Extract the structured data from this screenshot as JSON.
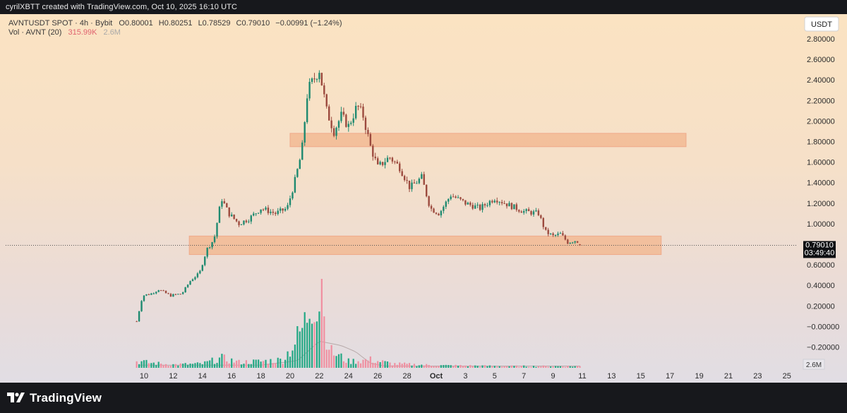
{
  "attribution": "cyrilXBTT created with TradingView.com, Oct 10, 2025 16:10 UTC",
  "brand": "TradingView",
  "legend": {
    "symbol": "AVNTUSDT SPOT · 4h · Bybit",
    "open": "O0.80001",
    "high": "H0.80251",
    "low": "L0.78529",
    "close": "C0.79010",
    "change": "−0.00991 (−1.24%)",
    "vol_label": "Vol · AVNT (20)",
    "vol_value": "315.99K",
    "vol_ma": "2.6M"
  },
  "currency_label": "USDT",
  "price_label": "0.79010",
  "countdown_label": "03:49:40",
  "volume_axis_label": "2.6M",
  "colors": {
    "up": "#1f8a70",
    "down": "#9c4a3e",
    "vol_up": "#22a884",
    "vol_down": "#f08fa0",
    "zone": "#f2b68e",
    "zone_border": "#efa98a",
    "text": "#3a3a3a"
  },
  "chart_data": {
    "type": "candlestick",
    "title": "AVNTUSDT SPOT · 4h · Bybit",
    "xlabel": "",
    "ylabel": "",
    "y_ticks": [
      "2.80000",
      "2.60000",
      "2.40000",
      "2.20000",
      "2.00000",
      "1.80000",
      "1.60000",
      "1.40000",
      "1.20000",
      "1.00000",
      "0.80000",
      "0.60000",
      "0.40000",
      "0.20000",
      "−0.00000",
      "−0.20000"
    ],
    "ylim": [
      -0.3,
      2.87
    ],
    "x_ticks": [
      "10",
      "12",
      "14",
      "16",
      "18",
      "20",
      "22",
      "24",
      "26",
      "28",
      "Oct",
      "3",
      "5",
      "7",
      "9",
      "11",
      "13",
      "15",
      "17",
      "19",
      "21",
      "23",
      "25"
    ],
    "x_tick_days": [
      10,
      12,
      14,
      16,
      18,
      20,
      22,
      24,
      26,
      28,
      30,
      32,
      34,
      36,
      38,
      40,
      42,
      44,
      46,
      48,
      50,
      52,
      54
    ],
    "zones": [
      {
        "name": "resistance",
        "from": 1.75,
        "to": 1.88,
        "start_day": 20,
        "end_day": 47.1
      },
      {
        "name": "support",
        "from": 0.7,
        "to": 0.88,
        "start_day": 13.1,
        "end_day": 45.4
      }
    ],
    "keypoints": [
      {
        "day": 9.5,
        "price": 0.05
      },
      {
        "day": 9.9,
        "price": 0.3
      },
      {
        "day": 10.5,
        "price": 0.32
      },
      {
        "day": 11.0,
        "price": 0.36
      },
      {
        "day": 11.8,
        "price": 0.3
      },
      {
        "day": 12.6,
        "price": 0.32
      },
      {
        "day": 13.2,
        "price": 0.45
      },
      {
        "day": 13.8,
        "price": 0.52
      },
      {
        "day": 14.3,
        "price": 0.75
      },
      {
        "day": 14.8,
        "price": 0.85
      },
      {
        "day": 15.3,
        "price": 1.25
      },
      {
        "day": 15.8,
        "price": 1.1
      },
      {
        "day": 16.5,
        "price": 1.0
      },
      {
        "day": 17.2,
        "price": 1.05
      },
      {
        "day": 18.0,
        "price": 1.15
      },
      {
        "day": 19.0,
        "price": 1.1
      },
      {
        "day": 19.8,
        "price": 1.15
      },
      {
        "day": 20.3,
        "price": 1.4
      },
      {
        "day": 20.8,
        "price": 1.7
      },
      {
        "day": 21.2,
        "price": 2.3
      },
      {
        "day": 21.6,
        "price": 2.4
      },
      {
        "day": 22.0,
        "price": 2.5
      },
      {
        "day": 22.5,
        "price": 2.1
      },
      {
        "day": 23.0,
        "price": 1.9
      },
      {
        "day": 23.5,
        "price": 2.05
      },
      {
        "day": 24.0,
        "price": 1.95
      },
      {
        "day": 24.6,
        "price": 2.15
      },
      {
        "day": 25.0,
        "price": 2.05
      },
      {
        "day": 25.5,
        "price": 1.75
      },
      {
        "day": 26.0,
        "price": 1.55
      },
      {
        "day": 26.8,
        "price": 1.65
      },
      {
        "day": 27.5,
        "price": 1.55
      },
      {
        "day": 28.2,
        "price": 1.35
      },
      {
        "day": 29.0,
        "price": 1.45
      },
      {
        "day": 29.6,
        "price": 1.15
      },
      {
        "day": 30.2,
        "price": 1.1
      },
      {
        "day": 31.0,
        "price": 1.28
      },
      {
        "day": 32.0,
        "price": 1.2
      },
      {
        "day": 33.0,
        "price": 1.15
      },
      {
        "day": 34.0,
        "price": 1.25
      },
      {
        "day": 35.0,
        "price": 1.18
      },
      {
        "day": 36.0,
        "price": 1.12
      },
      {
        "day": 37.0,
        "price": 1.1
      },
      {
        "day": 37.5,
        "price": 0.92
      },
      {
        "day": 38.0,
        "price": 0.88
      },
      {
        "day": 38.5,
        "price": 0.9
      },
      {
        "day": 39.0,
        "price": 0.82
      },
      {
        "day": 39.6,
        "price": 0.84
      },
      {
        "day": 39.9,
        "price": 0.79
      }
    ],
    "volume_keypoints": [
      {
        "day": 9.6,
        "value": 0.08
      },
      {
        "day": 10.5,
        "value": 0.06
      },
      {
        "day": 12.0,
        "value": 0.04
      },
      {
        "day": 14.0,
        "value": 0.05
      },
      {
        "day": 15.3,
        "value": 0.12
      },
      {
        "day": 16.5,
        "value": 0.07
      },
      {
        "day": 18.0,
        "value": 0.08
      },
      {
        "day": 19.5,
        "value": 0.1
      },
      {
        "day": 20.3,
        "value": 0.3
      },
      {
        "day": 21.0,
        "value": 0.55
      },
      {
        "day": 21.6,
        "value": 0.95
      },
      {
        "day": 22.2,
        "value": 0.7
      },
      {
        "day": 22.8,
        "value": 0.2
      },
      {
        "day": 24.0,
        "value": 0.08
      },
      {
        "day": 25.5,
        "value": 0.1
      },
      {
        "day": 27.0,
        "value": 0.05
      },
      {
        "day": 30.0,
        "value": 0.03
      },
      {
        "day": 35.0,
        "value": 0.02
      },
      {
        "day": 39.9,
        "value": 0.02
      }
    ],
    "volume_peak_day": 22.1,
    "volume_ma_keypoints": [
      {
        "day": 9.6,
        "value": 0.03
      },
      {
        "day": 18.0,
        "value": 0.03
      },
      {
        "day": 20.5,
        "value": 0.08
      },
      {
        "day": 22.0,
        "value": 0.3
      },
      {
        "day": 23.5,
        "value": 0.25
      },
      {
        "day": 24.5,
        "value": 0.18
      },
      {
        "day": 25.5,
        "value": 0.05
      },
      {
        "day": 26.5,
        "value": 0.02
      },
      {
        "day": 39.9,
        "value": 0.02
      }
    ],
    "last_price": 0.7901
  }
}
